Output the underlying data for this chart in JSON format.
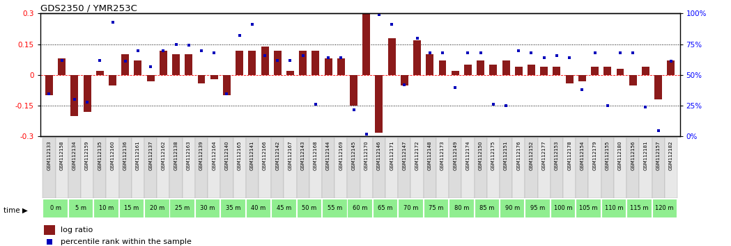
{
  "title": "GDS2350 / YMR253C",
  "samples": [
    "GSM112133",
    "GSM112158",
    "GSM112134",
    "GSM112159",
    "GSM112135",
    "GSM112160",
    "GSM112136",
    "GSM112161",
    "GSM112137",
    "GSM112162",
    "GSM112138",
    "GSM112163",
    "GSM112139",
    "GSM112164",
    "GSM112140",
    "GSM112165",
    "GSM112141",
    "GSM112166",
    "GSM112142",
    "GSM112167",
    "GSM112143",
    "GSM112168",
    "GSM112144",
    "GSM112169",
    "GSM112145",
    "GSM112170",
    "GSM112146",
    "GSM112171",
    "GSM112147",
    "GSM112172",
    "GSM112148",
    "GSM112173",
    "GSM112149",
    "GSM112174",
    "GSM112150",
    "GSM112175",
    "GSM112151",
    "GSM112176",
    "GSM112152",
    "GSM112177",
    "GSM112153",
    "GSM112178",
    "GSM112154",
    "GSM112179",
    "GSM112155",
    "GSM112180",
    "GSM112156",
    "GSM112181",
    "GSM112157",
    "GSM112182"
  ],
  "time_labels": [
    "0 m",
    "5 m",
    "10 m",
    "15 m",
    "20 m",
    "25 m",
    "30 m",
    "35 m",
    "40 m",
    "45 m",
    "50 m",
    "55 m",
    "60 m",
    "65 m",
    "70 m",
    "75 m",
    "80 m",
    "85 m",
    "90 m",
    "95 m",
    "100 m",
    "105 m",
    "110 m",
    "115 m",
    "120 m"
  ],
  "log_ratio": [
    -0.1,
    0.08,
    -0.2,
    -0.18,
    0.02,
    -0.05,
    0.1,
    0.07,
    -0.03,
    0.12,
    0.1,
    0.1,
    -0.04,
    -0.02,
    -0.1,
    0.12,
    0.12,
    0.14,
    0.12,
    0.02,
    0.12,
    0.12,
    0.08,
    0.08,
    -0.15,
    0.3,
    -0.28,
    0.18,
    -0.05,
    0.17,
    0.1,
    0.07,
    0.02,
    0.05,
    0.07,
    0.05,
    0.07,
    0.04,
    0.05,
    0.04,
    0.04,
    -0.04,
    -0.03,
    0.04,
    0.04,
    0.03,
    -0.05,
    0.04,
    -0.12,
    0.07
  ],
  "percentile_values": [
    35,
    62,
    30,
    28,
    62,
    93,
    61,
    70,
    57,
    70,
    75,
    74,
    70,
    68,
    35,
    82,
    91,
    66,
    62,
    62,
    66,
    26,
    64,
    64,
    22,
    2,
    99,
    91,
    42,
    80,
    68,
    68,
    40,
    68,
    68,
    26,
    25,
    70,
    68,
    64,
    66,
    64,
    38,
    68,
    25,
    68,
    68,
    24,
    5,
    61
  ],
  "ylim": [
    -0.3,
    0.3
  ],
  "y2lim": [
    0,
    100
  ],
  "bar_color": "#8B1A1A",
  "dot_color": "#0000BB",
  "time_green": "#90EE90",
  "gsm_bg": "#E8E8E8",
  "legend_bar_color": "#8B1A1A",
  "legend_dot_color": "#0000BB"
}
